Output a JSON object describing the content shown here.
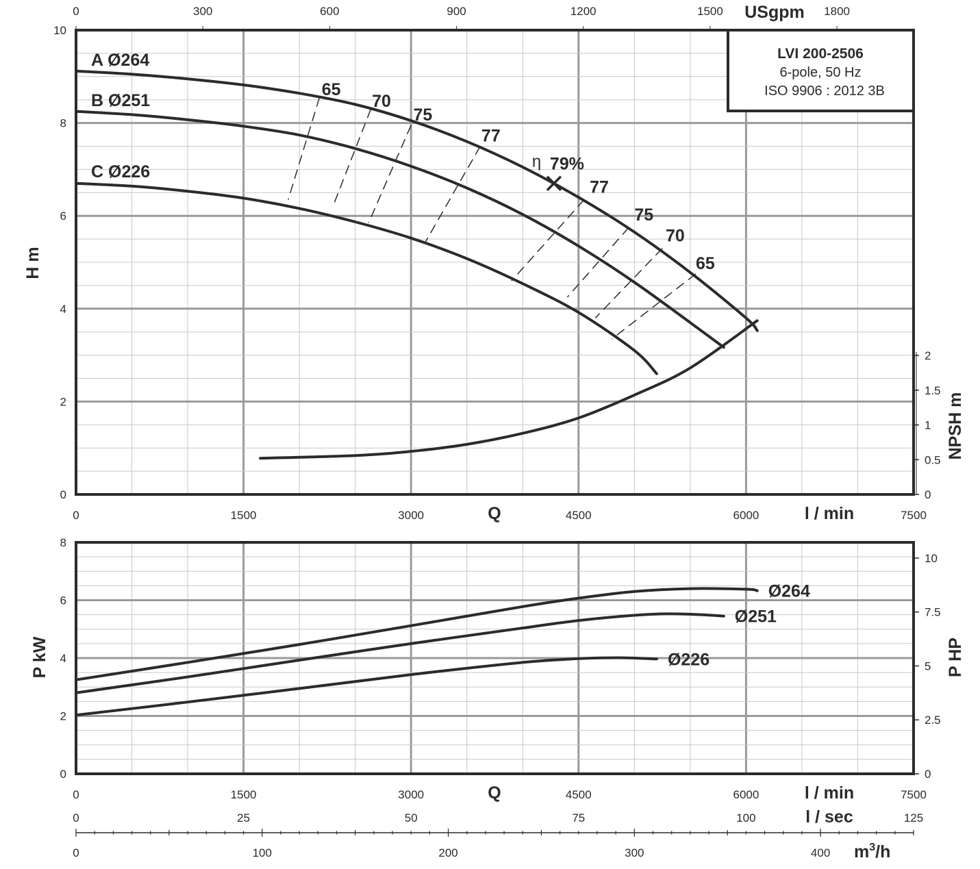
{
  "title_box": {
    "model": "LVI 200-2506",
    "line2": "6-pole, 50 Hz",
    "line3": "ISO 9906 : 2012 3B"
  },
  "axes": {
    "head_ylabel": "H m",
    "npsh_ylabel": "NPSH m",
    "power_ylabel": "P kW",
    "power_hp_ylabel": "P HP",
    "flow_symbol": "Q",
    "flow_unit_lmin": "l / min",
    "flow_unit_lsec": "l / sec",
    "flow_unit_m3h_base": "m",
    "flow_unit_m3h_sup": "3",
    "flow_unit_m3h_tail": "/h",
    "flow_unit_usgpm": "USgpm"
  },
  "chart_data": [
    {
      "type": "line",
      "name": "head",
      "x_unit": "l/min",
      "xlim": [
        0,
        7500
      ],
      "ylim": [
        0,
        10
      ],
      "x_ticks": [
        0,
        1500,
        3000,
        4500,
        6000,
        7500
      ],
      "y_ticks": [
        0,
        2,
        4,
        6,
        8,
        10
      ],
      "top_axis_ticks_usgpm": [
        0,
        300,
        600,
        900,
        1200,
        1500,
        1800
      ],
      "npsh_axis_ticks": [
        "0",
        "0.5",
        "1",
        "1.5",
        "2"
      ],
      "series": [
        {
          "name": "A Ø264",
          "points": [
            [
              0,
              9.12
            ],
            [
              500,
              9.05
            ],
            [
              1000,
              8.95
            ],
            [
              1500,
              8.82
            ],
            [
              2000,
              8.64
            ],
            [
              2500,
              8.4
            ],
            [
              3000,
              8.05
            ],
            [
              3500,
              7.6
            ],
            [
              4000,
              7.05
            ],
            [
              4500,
              6.4
            ],
            [
              5000,
              5.65
            ],
            [
              5500,
              4.78
            ],
            [
              6000,
              3.8
            ],
            [
              6100,
              3.53
            ]
          ]
        },
        {
          "name": "B Ø251",
          "points": [
            [
              0,
              8.25
            ],
            [
              500,
              8.18
            ],
            [
              1000,
              8.07
            ],
            [
              1500,
              7.93
            ],
            [
              2000,
              7.74
            ],
            [
              2500,
              7.45
            ],
            [
              3000,
              7.07
            ],
            [
              3500,
              6.6
            ],
            [
              4000,
              6.03
            ],
            [
              4500,
              5.35
            ],
            [
              5000,
              4.57
            ],
            [
              5500,
              3.7
            ],
            [
              5800,
              3.17
            ]
          ]
        },
        {
          "name": "C Ø226",
          "points": [
            [
              0,
              6.7
            ],
            [
              500,
              6.64
            ],
            [
              1000,
              6.53
            ],
            [
              1500,
              6.38
            ],
            [
              2000,
              6.16
            ],
            [
              2500,
              5.87
            ],
            [
              3000,
              5.52
            ],
            [
              3500,
              5.08
            ],
            [
              4000,
              4.54
            ],
            [
              4500,
              3.92
            ],
            [
              5000,
              3.1
            ],
            [
              5200,
              2.6
            ]
          ]
        },
        {
          "name": "NPSH",
          "points": [
            [
              1650,
              0.52
            ],
            [
              2500,
              0.56
            ],
            [
              3000,
              0.62
            ],
            [
              3500,
              0.72
            ],
            [
              4000,
              0.88
            ],
            [
              4500,
              1.1
            ],
            [
              5000,
              1.43
            ],
            [
              5500,
              1.82
            ],
            [
              6100,
              2.5
            ]
          ]
        }
      ],
      "efficiency_labels": [
        {
          "text": "65",
          "x": 2200,
          "y": 8.6
        },
        {
          "text": "70",
          "x": 2650,
          "y": 8.35
        },
        {
          "text": "75",
          "x": 3020,
          "y": 8.05
        },
        {
          "text": "77",
          "x": 3630,
          "y": 7.6
        },
        {
          "text": "77",
          "x": 4600,
          "y": 6.5
        },
        {
          "text": "75",
          "x": 5000,
          "y": 5.9
        },
        {
          "text": "70",
          "x": 5280,
          "y": 5.45
        },
        {
          "text": "65",
          "x": 5550,
          "y": 4.85
        }
      ],
      "efficiency_lines": [
        {
          "points": [
            [
              2180,
              8.55
            ],
            [
              1900,
              6.35
            ]
          ]
        },
        {
          "points": [
            [
              2640,
              8.3
            ],
            [
              2300,
              6.2
            ]
          ]
        },
        {
          "points": [
            [
              3000,
              7.95
            ],
            [
              2620,
              5.85
            ]
          ]
        },
        {
          "points": [
            [
              3620,
              7.5
            ],
            [
              3120,
              5.4
            ]
          ]
        },
        {
          "points": [
            [
              4550,
              6.35
            ],
            [
              3900,
              4.6
            ]
          ]
        },
        {
          "points": [
            [
              4950,
              5.75
            ],
            [
              4400,
              4.25
            ]
          ]
        },
        {
          "points": [
            [
              5250,
              5.3
            ],
            [
              4650,
              3.8
            ]
          ]
        },
        {
          "points": [
            [
              5550,
              4.75
            ],
            [
              4800,
              3.35
            ]
          ]
        }
      ],
      "best_efficiency": {
        "symbol": "η",
        "label": "79%",
        "x": 4280,
        "y": 6.7
      }
    },
    {
      "type": "line",
      "name": "power",
      "x_unit": "l/min",
      "xlim": [
        0,
        7500
      ],
      "ylim": [
        0,
        8
      ],
      "x_ticks": [
        0,
        1500,
        3000,
        4500,
        6000,
        7500
      ],
      "y_ticks": [
        0,
        2,
        4,
        6,
        8
      ],
      "hp_axis_ticks": [
        "0",
        "2.5",
        "5",
        "7.5",
        "10"
      ],
      "lsec_ticks": [
        0,
        25,
        50,
        75,
        100,
        125
      ],
      "m3h_ticks": [
        0,
        100,
        200,
        300,
        400
      ],
      "series": [
        {
          "name": "Ø264",
          "points": [
            [
              0,
              3.25
            ],
            [
              1000,
              3.85
            ],
            [
              2000,
              4.47
            ],
            [
              3000,
              5.12
            ],
            [
              4000,
              5.78
            ],
            [
              4500,
              6.07
            ],
            [
              5000,
              6.3
            ],
            [
              5500,
              6.4
            ],
            [
              6000,
              6.38
            ],
            [
              6100,
              6.33
            ]
          ]
        },
        {
          "name": "Ø251",
          "points": [
            [
              0,
              2.8
            ],
            [
              1000,
              3.35
            ],
            [
              2000,
              3.93
            ],
            [
              3000,
              4.5
            ],
            [
              4000,
              5.04
            ],
            [
              4500,
              5.3
            ],
            [
              5000,
              5.48
            ],
            [
              5300,
              5.53
            ],
            [
              5600,
              5.5
            ],
            [
              5800,
              5.45
            ]
          ]
        },
        {
          "name": "Ø226",
          "points": [
            [
              0,
              2.03
            ],
            [
              1000,
              2.48
            ],
            [
              2000,
              2.95
            ],
            [
              3000,
              3.43
            ],
            [
              4000,
              3.85
            ],
            [
              4500,
              3.98
            ],
            [
              4800,
              4.01
            ],
            [
              5000,
              4.0
            ],
            [
              5200,
              3.97
            ]
          ]
        }
      ]
    }
  ]
}
